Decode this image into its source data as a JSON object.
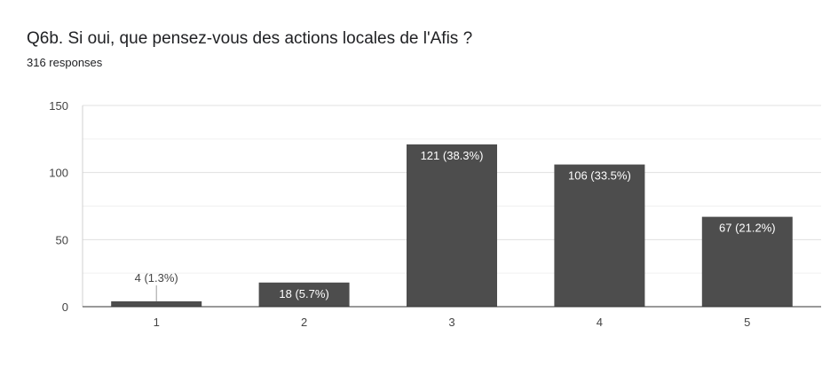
{
  "header": {
    "title": "Q6b. Si oui, que pensez-vous des actions locales de l'Afis ?",
    "subtitle": "316 responses"
  },
  "chart_data": {
    "type": "bar",
    "categories": [
      "1",
      "2",
      "3",
      "4",
      "5"
    ],
    "values": [
      4,
      18,
      121,
      106,
      67
    ],
    "data_labels": [
      "4 (1.3%)",
      "18 (5.7%)",
      "121 (38.3%)",
      "106 (33.5%)",
      "67 (21.2%)"
    ],
    "ylim": [
      0,
      150
    ],
    "yticks": [
      0,
      50,
      100,
      150
    ],
    "grid": true,
    "bar_color": "#4d4d4d",
    "gridline_color": "#e0e0e0"
  }
}
